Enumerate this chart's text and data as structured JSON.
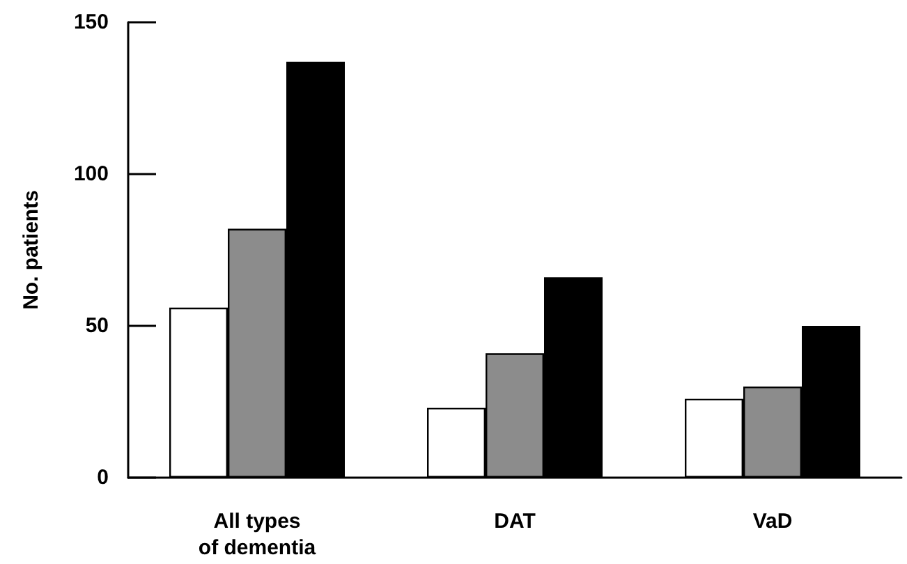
{
  "chart_data": {
    "type": "bar",
    "ylabel": "No. patients",
    "categories": [
      "All types\nof dementia",
      "DAT",
      "VaD"
    ],
    "series": [
      {
        "color": "#ffffff",
        "values": [
          56,
          23,
          26
        ]
      },
      {
        "color": "#8c8c8c",
        "values": [
          82,
          41,
          30
        ]
      },
      {
        "color": "#000000",
        "values": [
          137,
          66,
          50
        ]
      }
    ],
    "ylim": [
      0,
      150
    ],
    "yticks": [
      0,
      50,
      100,
      150
    ],
    "grid": false
  }
}
